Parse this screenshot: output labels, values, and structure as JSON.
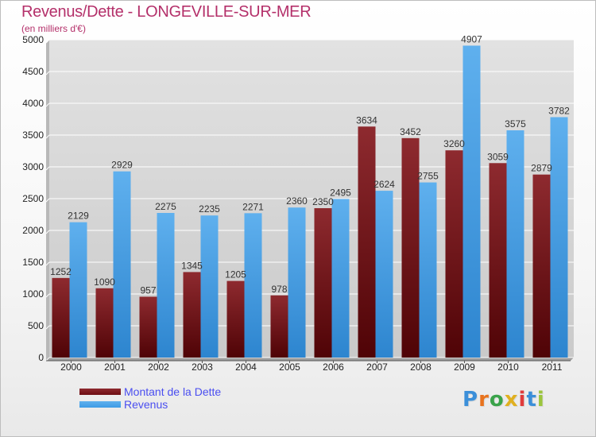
{
  "header": {
    "title": "Revenus/Dette - LONGEVILLE-SUR-MER",
    "subtitle": "(en milliers d'€)"
  },
  "legend": {
    "items": [
      {
        "label": "Montant de la Dette",
        "color": "#6e0d12"
      },
      {
        "label": "Revenus",
        "color": "#3d9be5"
      }
    ]
  },
  "brand": {
    "letters": [
      "P",
      "r",
      "o",
      "x",
      "i",
      "t",
      "i"
    ],
    "colors": [
      "#3b8fd9",
      "#e8731e",
      "#3aa34a",
      "#e0b020",
      "#e03b3b",
      "#3b8fd9",
      "#9bc53d"
    ]
  },
  "chart_data": {
    "type": "bar",
    "categories": [
      "2000",
      "2001",
      "2002",
      "2003",
      "2004",
      "2005",
      "2006",
      "2007",
      "2008",
      "2009",
      "2010",
      "2011"
    ],
    "series": [
      {
        "name": "Montant de la Dette",
        "values": [
          1252,
          1090,
          957,
          1345,
          1205,
          978,
          2350,
          3634,
          3452,
          3260,
          3059,
          2879
        ],
        "labels": [
          "1252",
          "1090",
          "957",
          "1345",
          "1205",
          "978",
          "2350",
          "3634",
          "3452",
          "3260",
          "3059",
          "2879"
        ],
        "color": "#6e0d12"
      },
      {
        "name": "Revenus",
        "values": [
          2129,
          2929,
          2275,
          2235,
          2271,
          2360,
          2495,
          2624,
          2755,
          4907,
          3575,
          3782
        ],
        "labels": [
          "2129",
          "2929",
          "2275",
          "2235",
          "2271",
          "2360",
          "2495",
          "2624",
          "2755",
          "4907",
          "3575",
          "3782"
        ],
        "color": "#3d9be5"
      }
    ],
    "yticks": [
      0,
      500,
      1000,
      1500,
      2000,
      2500,
      3000,
      3500,
      4000,
      4500,
      5000
    ],
    "ylim": [
      0,
      5000
    ],
    "grid": true,
    "legend_position": "bottom-left"
  }
}
